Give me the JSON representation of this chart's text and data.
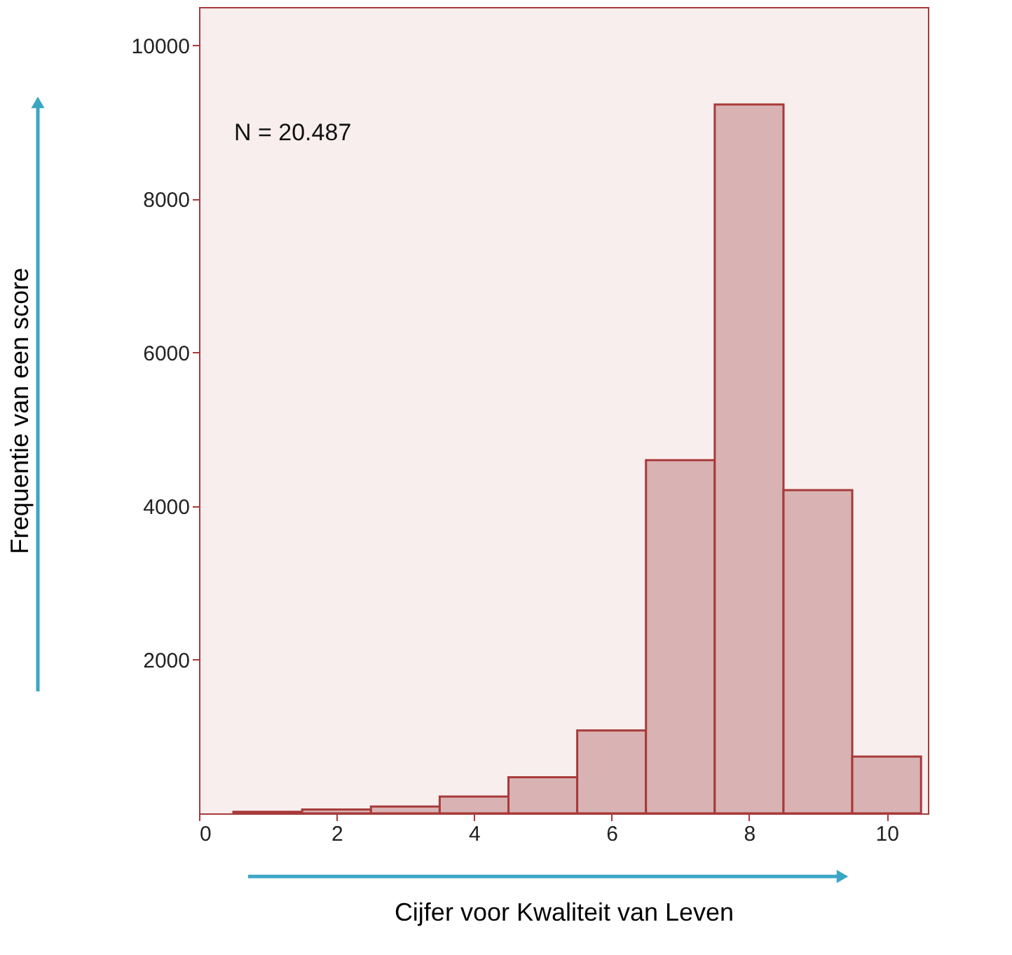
{
  "chart_data": {
    "type": "histogram",
    "xlabel": "Cijfer voor Kwaliteit van Leven",
    "ylabel": "Frequentie van een score",
    "bins": [
      0.5,
      1.5,
      2.5,
      3.5,
      4.5,
      5.5,
      6.5,
      7.5,
      8.5,
      9.5,
      10.5
    ],
    "values": [
      20,
      50,
      90,
      220,
      470,
      1080,
      4600,
      9230,
      4210,
      740
    ],
    "color": "#d9b3b3",
    "xlim": [
      0,
      10.6
    ],
    "xticks": [
      0,
      2,
      4,
      6,
      8,
      10
    ],
    "ylim": [
      0,
      10500
    ],
    "yticks": [
      2000,
      4000,
      6000,
      8000,
      10000
    ],
    "grid": false,
    "annotations": [
      "N = 20.487"
    ]
  }
}
